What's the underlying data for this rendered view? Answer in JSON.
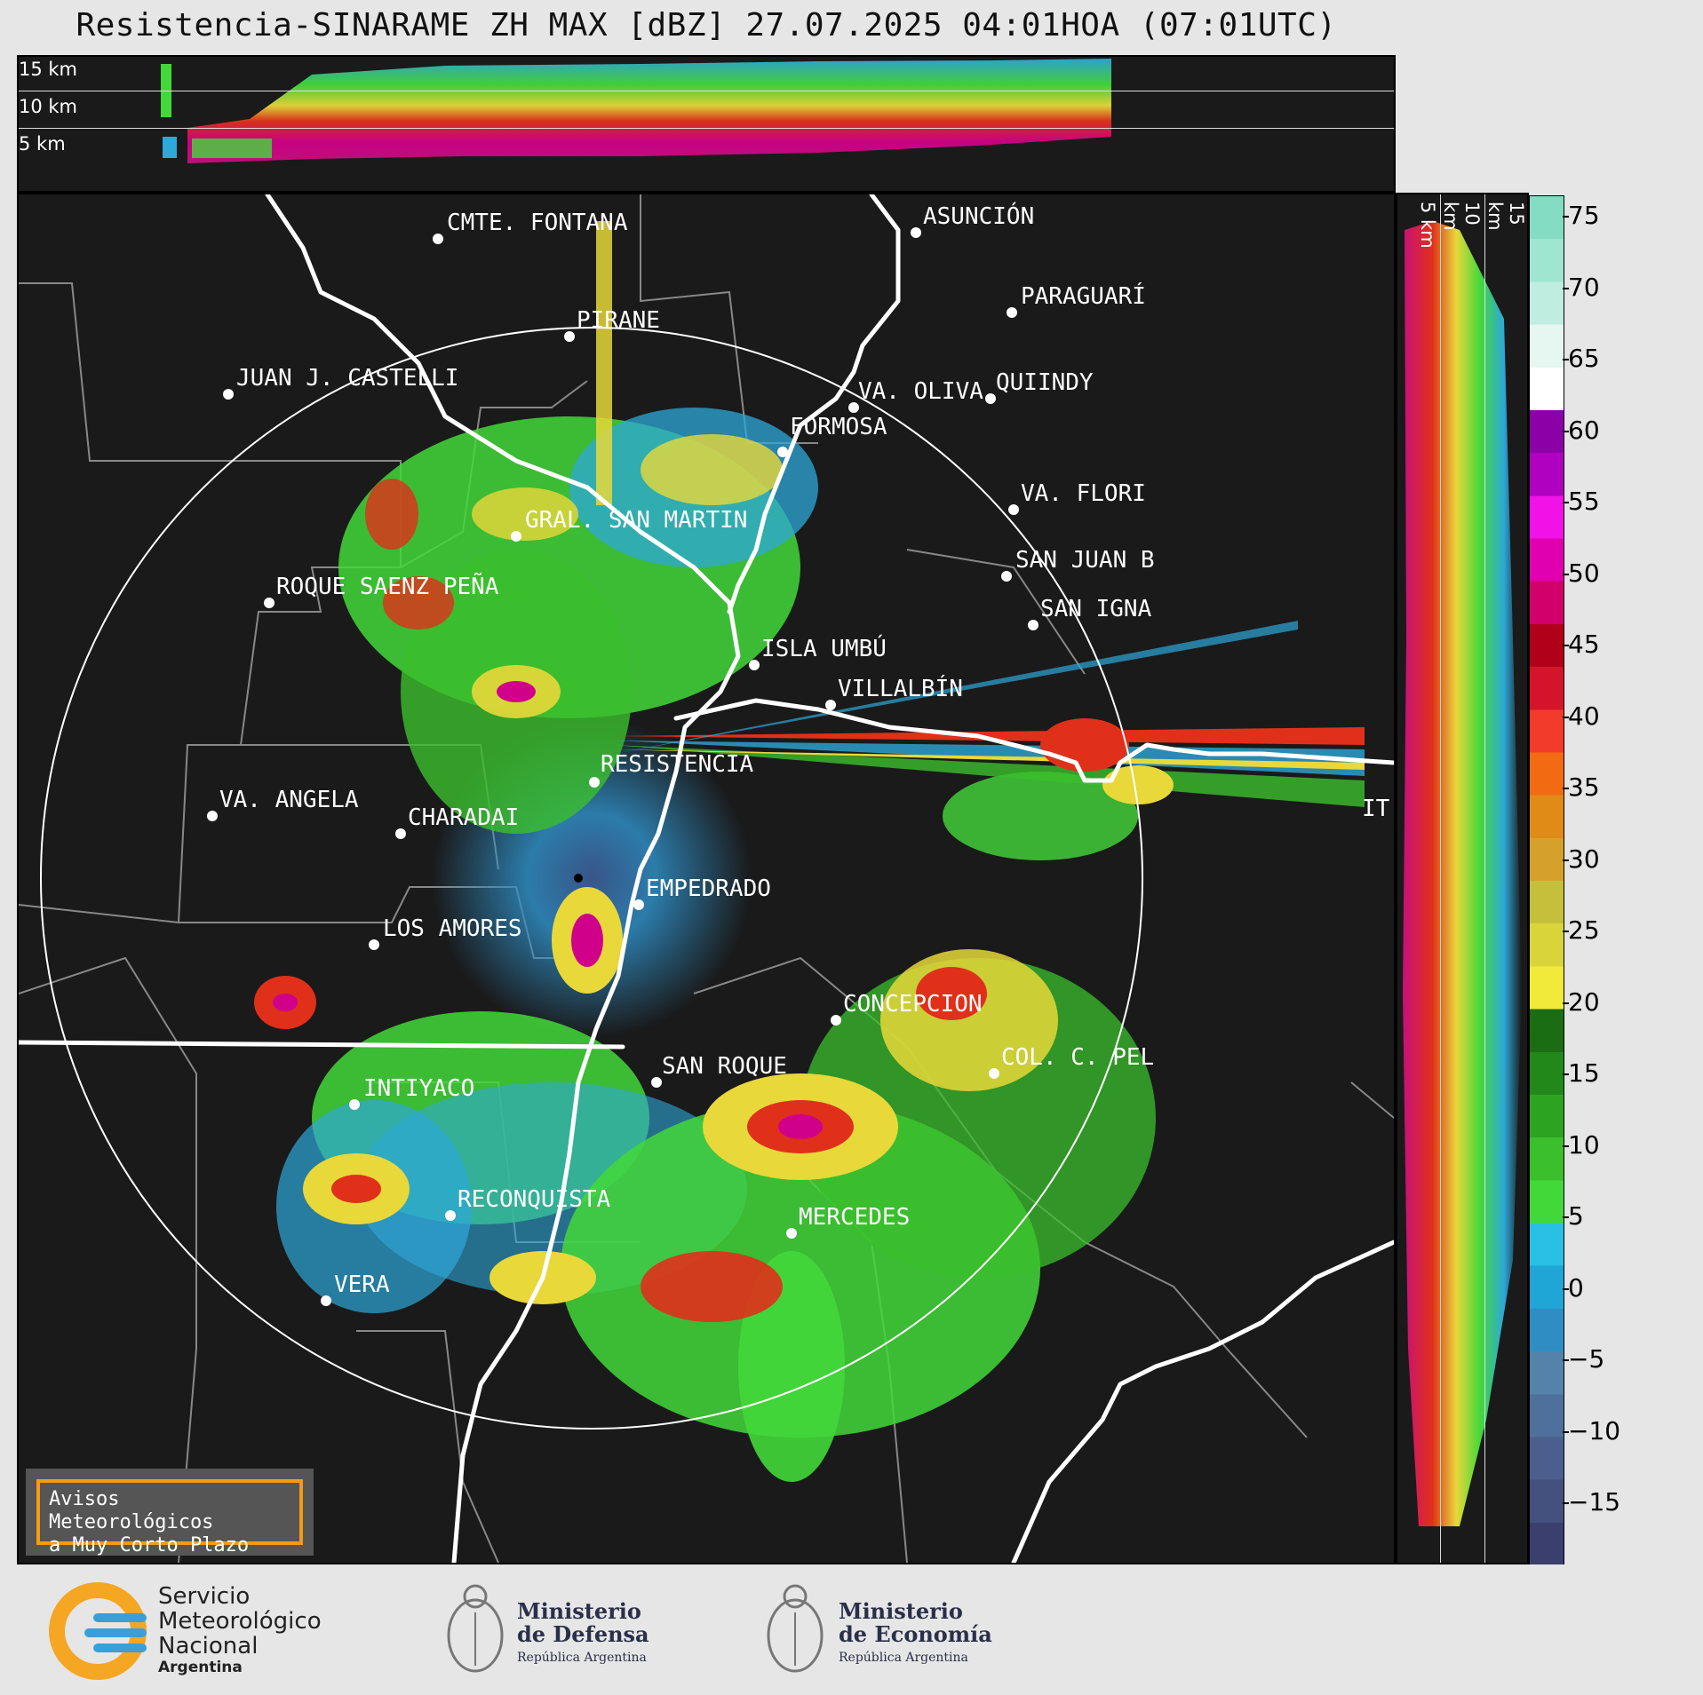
{
  "title": "Resistencia-SINARAME ZH MAX [dBZ] 27.07.2025 04:01HOA (07:01UTC)",
  "top_panel": {
    "altitudes": [
      "15 km",
      "10 km",
      "5 km"
    ]
  },
  "side_panel": {
    "altitudes": [
      "5 km",
      "10 km",
      "15 km"
    ]
  },
  "colorbar": {
    "ticks": [
      "75",
      "70",
      "65",
      "60",
      "55",
      "50",
      "45",
      "40",
      "35",
      "30",
      "25",
      "20",
      "15",
      "10",
      "5",
      "0",
      "−5",
      "−10",
      "−15"
    ],
    "colors": [
      "#3a3f6e",
      "#44507e",
      "#4a5f8e",
      "#4f709c",
      "#5582aa",
      "#2f8dc4",
      "#1fa5d6",
      "#2ac0e6",
      "#43d83a",
      "#3bbf2c",
      "#2da322",
      "#23881a",
      "#1b6d14",
      "#f1ea3a",
      "#d8d43a",
      "#c4c03a",
      "#d6a12a",
      "#e08a18",
      "#f26a12",
      "#f23b2a",
      "#d4142a",
      "#b0001a",
      "#d2006a",
      "#e000b0",
      "#f012e6",
      "#b000c0",
      "#8c00a8",
      "#ffffff",
      "#e6f6f0",
      "#bfeee0",
      "#9ee6d0",
      "#84dcc2"
    ]
  },
  "cities": [
    {
      "name": "CMTE. FONTANA"
    },
    {
      "name": "ASUNCIÓN"
    },
    {
      "name": "PARAGUARÍ"
    },
    {
      "name": "PIRANE"
    },
    {
      "name": "JUAN J. CASTELLI"
    },
    {
      "name": "VA. OLIVA"
    },
    {
      "name": "QUIINDY"
    },
    {
      "name": "FORMOSA"
    },
    {
      "name": "VA. FLORI"
    },
    {
      "name": "GRAL. SAN MARTIN"
    },
    {
      "name": "SAN JUAN B"
    },
    {
      "name": "ROQUE SAENZ PEÑA"
    },
    {
      "name": "SAN IGNA"
    },
    {
      "name": "ISLA UMBÚ"
    },
    {
      "name": "VILLALBÍN"
    },
    {
      "name": "RESISTENCIA"
    },
    {
      "name": "VA. ANGELA"
    },
    {
      "name": "CHARADAI"
    },
    {
      "name": "IT"
    },
    {
      "name": "EMPEDRADO"
    },
    {
      "name": "LOS AMORES"
    },
    {
      "name": "CONCEPCION"
    },
    {
      "name": "SAN ROQUE"
    },
    {
      "name": "COL. C. PEL"
    },
    {
      "name": "INTIYACO"
    },
    {
      "name": "RECONQUISTA"
    },
    {
      "name": "MERCEDES"
    },
    {
      "name": "VERA"
    }
  ],
  "alert": {
    "line1": "Avisos Meteorológicos",
    "line2": "a Muy Corto Plazo"
  },
  "logos": {
    "smn": {
      "line1": "Servicio",
      "line2": "Meteorológico",
      "line3": "Nacional",
      "line4": "Argentina"
    },
    "defensa": {
      "line1": "Ministerio",
      "line2": "de Defensa",
      "line3": "República Argentina"
    },
    "economia": {
      "line1": "Ministerio",
      "line2": "de Economía",
      "line3": "República Argentina"
    }
  }
}
